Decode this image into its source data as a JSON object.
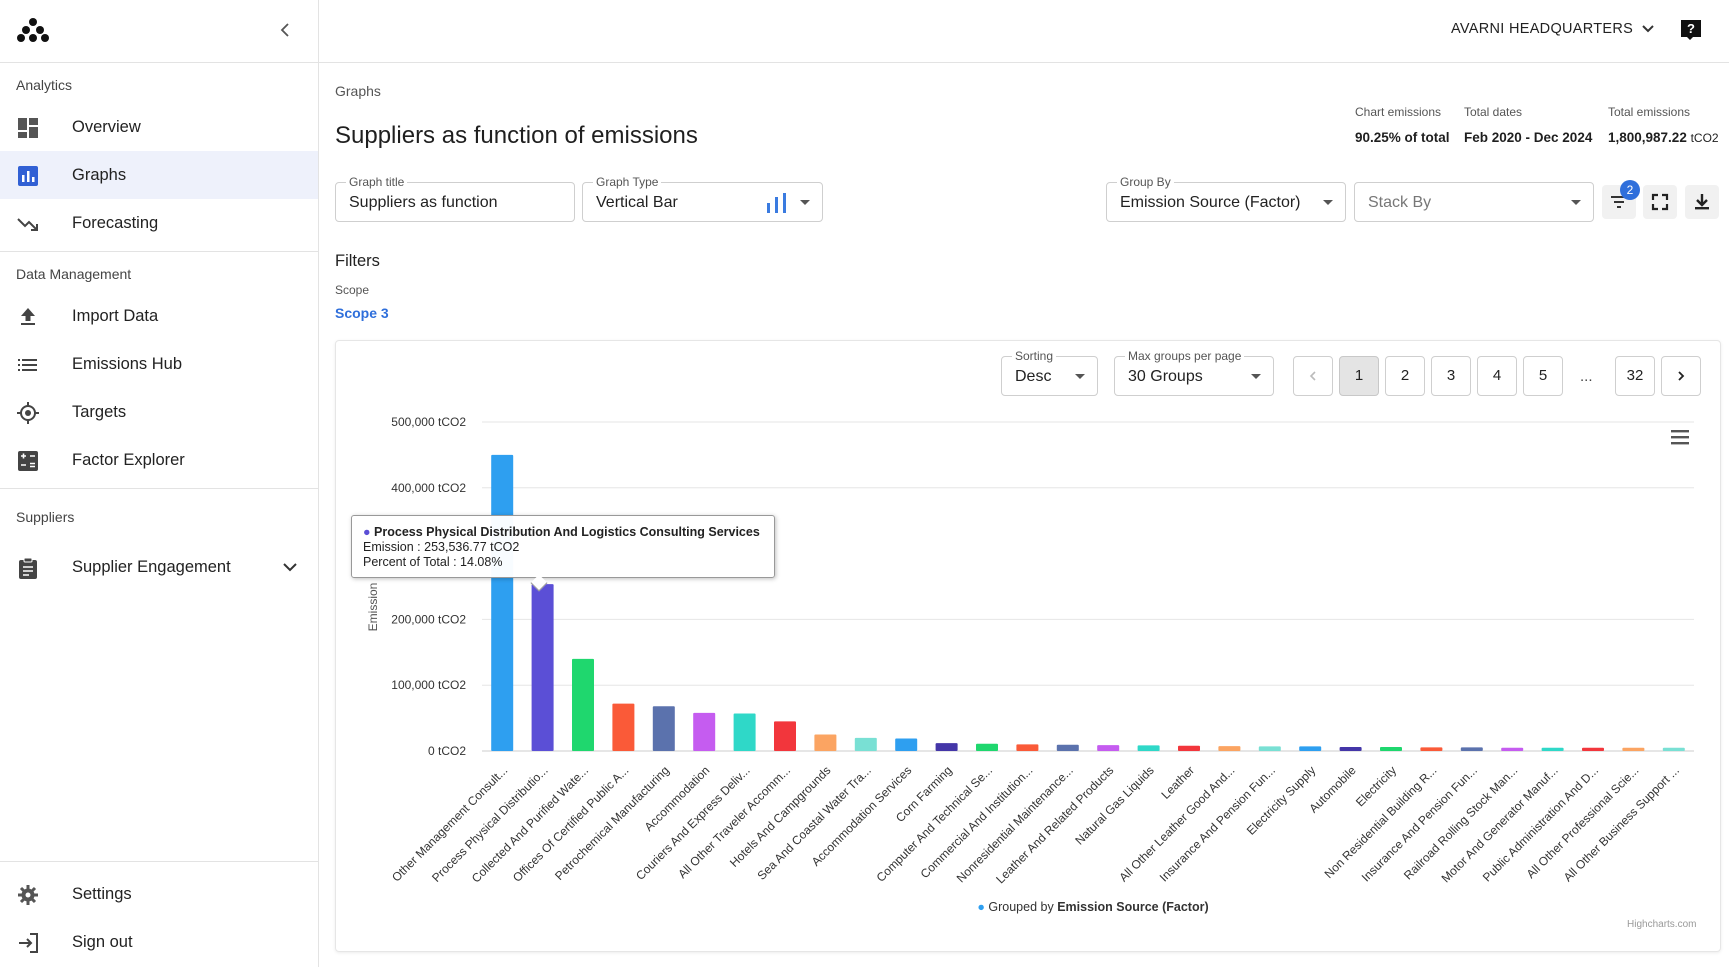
{
  "sidebar": {
    "sections": [
      {
        "title": "Analytics",
        "items": [
          {
            "label": "Overview",
            "icon": "dashboard-icon"
          },
          {
            "label": "Graphs",
            "icon": "bar-chart-icon",
            "active": true
          },
          {
            "label": "Forecasting",
            "icon": "trending-down-icon"
          }
        ]
      },
      {
        "title": "Data Management",
        "items": [
          {
            "label": "Import Data",
            "icon": "upload-icon"
          },
          {
            "label": "Emissions Hub",
            "icon": "list-icon"
          },
          {
            "label": "Targets",
            "icon": "target-icon"
          },
          {
            "label": "Factor Explorer",
            "icon": "calculator-icon"
          }
        ]
      },
      {
        "title": "Suppliers",
        "items": [
          {
            "label": "Supplier Engagement",
            "icon": "clipboard-icon"
          }
        ]
      }
    ],
    "bottom": [
      {
        "label": "Settings",
        "icon": "gear-icon"
      },
      {
        "label": "Sign out",
        "icon": "sign-out-icon"
      }
    ]
  },
  "topbar": {
    "org": "AVARNI HEADQUARTERS"
  },
  "page": {
    "breadcrumb": "Graphs",
    "title": "Suppliers as function of emissions",
    "stats": [
      {
        "label": "Chart emissions",
        "value": "90.25% of total",
        "unit": ""
      },
      {
        "label": "Total dates",
        "value": "Feb 2020 - Dec 2024",
        "unit": ""
      },
      {
        "label": "Total emissions",
        "value": "1,800,987.22",
        "unit": "tCO2"
      }
    ]
  },
  "controls": {
    "graph_title": {
      "label": "Graph title",
      "value": "Suppliers as function"
    },
    "graph_type": {
      "label": "Graph Type",
      "value": "Vertical Bar"
    },
    "group_by": {
      "label": "Group By",
      "value": "Emission Source (Factor)"
    },
    "stack_by": {
      "placeholder": "Stack By"
    },
    "filter_badge": "2"
  },
  "filters": {
    "heading": "Filters",
    "scope_label": "Scope",
    "scope_value": "Scope 3"
  },
  "chart_controls": {
    "sorting": {
      "label": "Sorting",
      "value": "Desc"
    },
    "max_groups": {
      "label": "Max groups per page",
      "value": "30 Groups"
    },
    "pages": [
      "1",
      "2",
      "3",
      "4",
      "5"
    ],
    "ellipsis": "...",
    "last_page": "32",
    "current_page": "1"
  },
  "tooltip": {
    "title": "Process Physical Distribution And Logistics Consulting Services",
    "line1": "Emission : 253,536.77 tCO2",
    "line2": "Percent of Total : 14.08%"
  },
  "credit": "Highcharts.com",
  "chart_data": {
    "type": "bar",
    "ylabel": "Emission",
    "ylim": [
      0,
      500000
    ],
    "yticks": [
      "0 tCO2",
      "100,000 tCO2",
      "200,000 tCO2",
      "400,000 tCO2",
      "500,000 tCO2"
    ],
    "ytick_values": [
      0,
      100000,
      200000,
      400000,
      500000
    ],
    "legend_prefix": "Grouped by",
    "legend_value": "Emission Source (Factor)",
    "categories": [
      "Other Management Consult...",
      "Process Physical Distributio...",
      "Collected And Purified Wate...",
      "Offices Of Certified Public A...",
      "Petrochemical Manufacturing",
      "Accommodation",
      "Couriers And Express Deliv...",
      "All Other Traveler Accomm...",
      "Hotels And Campgrounds",
      "Sea And Coastal Water Tra...",
      "Accommodation Services",
      "Corn Farming",
      "Computer And Technical Se...",
      "Commercial And Institution...",
      "Nonresidential Maintenance...",
      "Leather And Related Products",
      "Natural Gas Liquids",
      "Leather",
      "All Other Leather Good And...",
      "Insurance And Pension Fun...",
      "Electricity Supply",
      "Automobile",
      "Electricity",
      "Non Residential Building R...",
      "Insurance And Pension Fun...",
      "Railroad Rolling Stock Man...",
      "Motor And Generator Manuf...",
      "Public Administration And D...",
      "All Other Professional Scie...",
      "All Other Business Support ..."
    ],
    "values": [
      450000,
      253536.77,
      140000,
      72000,
      68000,
      58000,
      57000,
      45000,
      25000,
      20000,
      19000,
      12000,
      11000,
      10000,
      9500,
      9000,
      8500,
      8000,
      7500,
      7000,
      7000,
      6000,
      6000,
      5500,
      5500,
      5000,
      5000,
      5000,
      5000,
      5000
    ],
    "colors": [
      "#2e9ff0",
      "#5b4fd6",
      "#1fd76e",
      "#fa5a38",
      "#5b72ad",
      "#c55cf0",
      "#2fd8c8",
      "#f2363c",
      "#fba462",
      "#79e0d4",
      "#2e9ff0",
      "#4436a8",
      "#1fd76e",
      "#fa5a38",
      "#5b72ad",
      "#c55cf0",
      "#2fd8c8",
      "#f2363c",
      "#fba462",
      "#79e0d4",
      "#2e9ff0",
      "#4436a8",
      "#1fd76e",
      "#fa5a38",
      "#5b72ad",
      "#c55cf0",
      "#2fd8c8",
      "#f2363c",
      "#fba462",
      "#79e0d4"
    ]
  }
}
